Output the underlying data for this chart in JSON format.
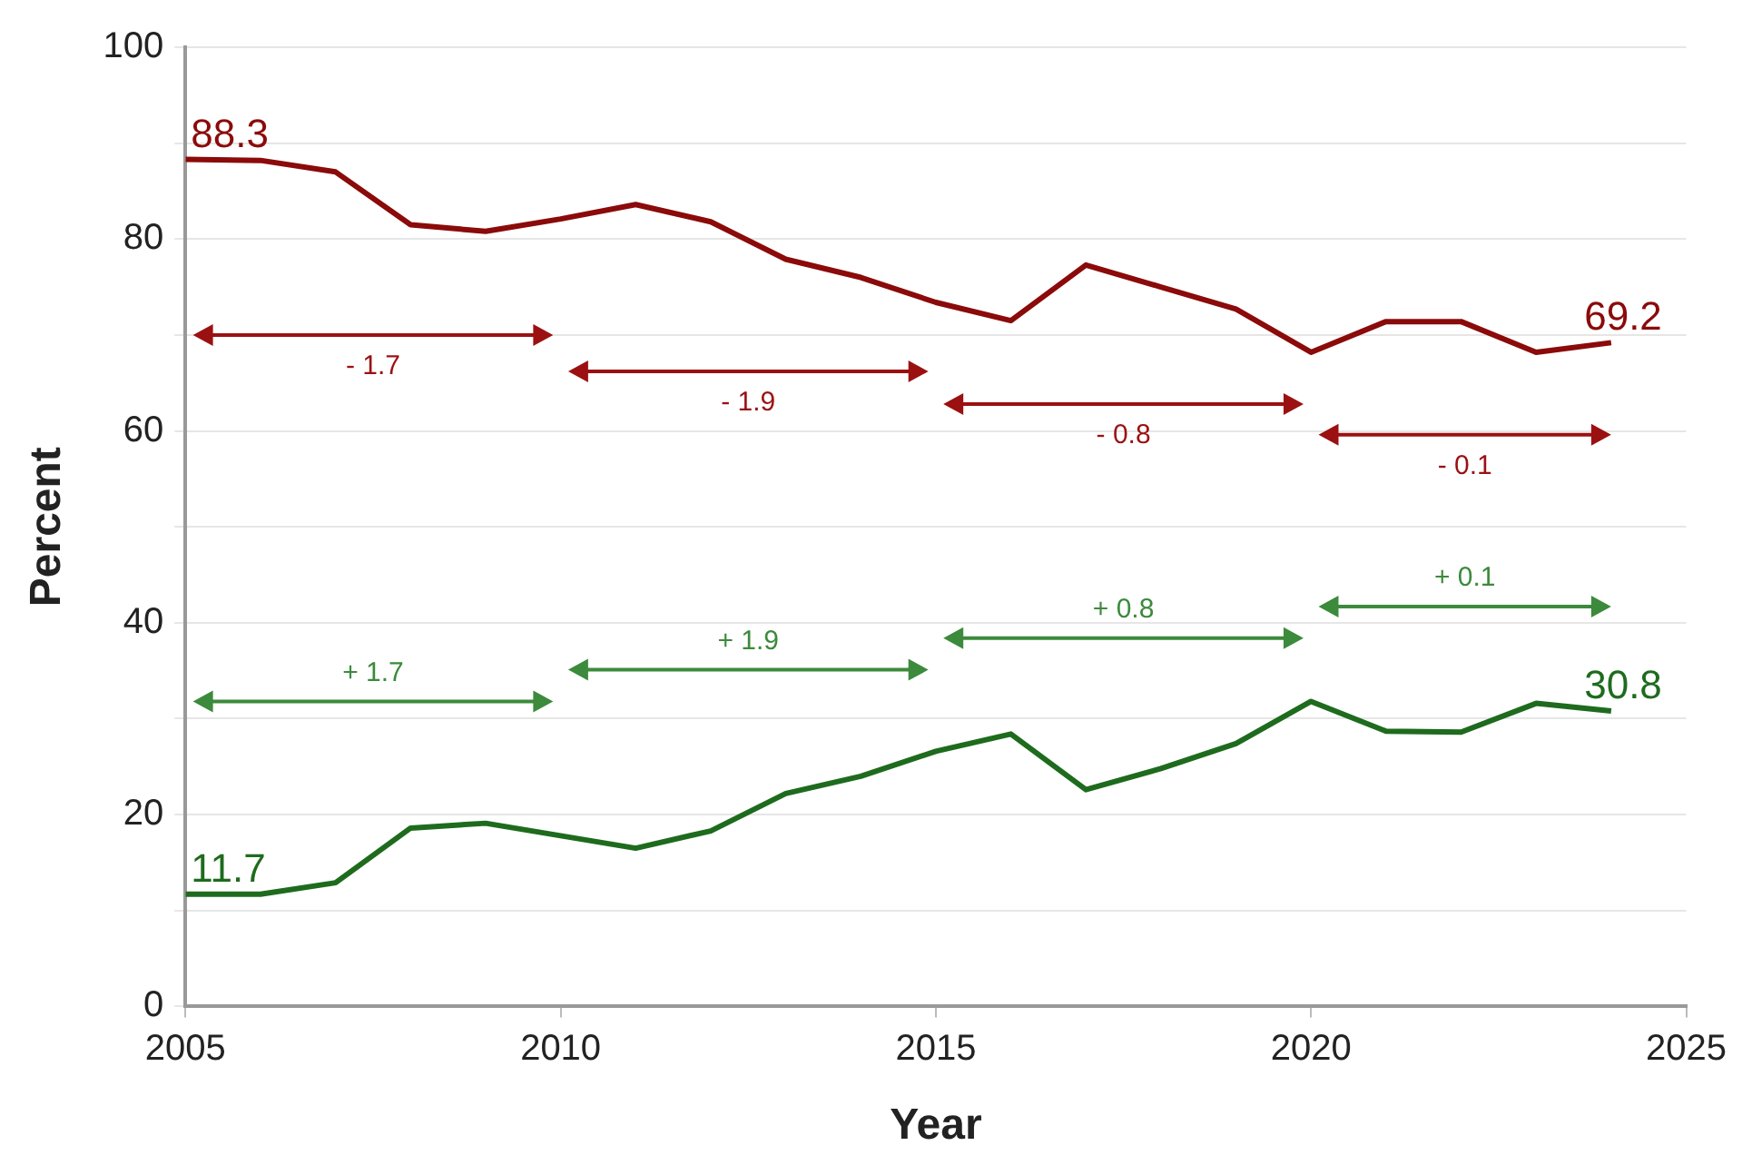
{
  "chart_data": {
    "type": "line",
    "xlabel": "Year",
    "ylabel": "Percent",
    "x": [
      2005,
      2006,
      2007,
      2008,
      2009,
      2010,
      2011,
      2012,
      2013,
      2014,
      2015,
      2016,
      2017,
      2018,
      2019,
      2020,
      2021,
      2022,
      2023,
      2024
    ],
    "series": [
      {
        "color": "#8b0a0a",
        "values": [
          88.3,
          88.2,
          87.0,
          81.5,
          80.8,
          82.1,
          83.6,
          81.8,
          77.9,
          76.0,
          73.4,
          71.5,
          77.3,
          75.0,
          72.7,
          68.2,
          71.4,
          71.4,
          68.2,
          69.2
        ],
        "value_labels": [
          "88.3",
          null,
          null,
          null,
          null,
          null,
          null,
          null,
          null,
          null,
          null,
          null,
          null,
          null,
          null,
          null,
          null,
          null,
          null,
          "69.2"
        ]
      },
      {
        "color": "#1e6b1e",
        "values": [
          11.7,
          11.7,
          12.9,
          18.6,
          19.1,
          17.8,
          16.5,
          18.3,
          22.2,
          24.0,
          26.6,
          28.4,
          22.6,
          24.8,
          27.4,
          31.8,
          28.7,
          28.6,
          31.6,
          30.8
        ],
        "value_labels": [
          "11.7",
          null,
          null,
          null,
          null,
          null,
          null,
          null,
          null,
          null,
          null,
          null,
          null,
          null,
          null,
          null,
          null,
          null,
          null,
          "30.8"
        ]
      }
    ],
    "annotations": [
      "- 1.7",
      "- 1.9",
      "- 0.8",
      "- 0.1",
      "+ 1.7",
      "+ 1.9",
      "+ 0.8",
      "+ 0.1"
    ],
    "xlim": [
      2005,
      2025
    ],
    "xticks": [
      2005,
      2010,
      2015,
      2020,
      2025
    ],
    "ylim": [
      0,
      100
    ],
    "yticks": [
      0,
      {
        "value": 10,
        "label": null
      },
      20,
      {
        "value": 30,
        "label": null
      },
      40,
      {
        "value": 50,
        "label": null
      },
      60,
      {
        "value": 70,
        "label": null
      },
      80,
      {
        "value": 90,
        "label": null
      },
      100
    ],
    "grid": "y",
    "legend": false,
    "marker": "none",
    "line_style": "solid"
  }
}
